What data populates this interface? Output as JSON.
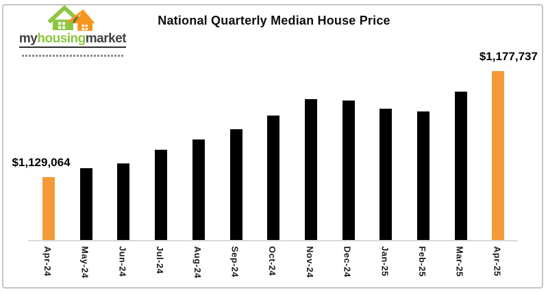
{
  "frame": {
    "border_color": "#C3C3C3",
    "background": "#FFFFFF"
  },
  "logo": {
    "my": "my",
    "housing": "housing",
    "market": "market",
    "green": "#8DC63F",
    "orange": "#F7941E",
    "dark": "#414042"
  },
  "chart_data": {
    "type": "bar",
    "title": "National Quarterly Median House Price",
    "categories": [
      "Apr-24",
      "May-24",
      "Jun-24",
      "Jul-24",
      "Aug-24",
      "Sep-24",
      "Oct-24",
      "Nov-24",
      "Dec-24",
      "Jan-25",
      "Feb-25",
      "Mar-25",
      "Apr-25"
    ],
    "values": [
      1129064,
      1133100,
      1135300,
      1141600,
      1146300,
      1151000,
      1157300,
      1164900,
      1164200,
      1160500,
      1159200,
      1168300,
      1177737
    ],
    "xlabel": "",
    "ylabel": "",
    "ylim": [
      1100000,
      1190000
    ],
    "grid": false,
    "legend": false,
    "bar_color": "#000000",
    "highlight_color": "#F49A38",
    "highlight_indices": [
      0,
      12
    ],
    "data_labels": [
      {
        "index": 0,
        "text": "$1,129,064"
      },
      {
        "index": 12,
        "text": "$1,177,737"
      }
    ],
    "axis_line_color": "#D9D9D9",
    "tick_label_color": "#1A1A1A"
  }
}
